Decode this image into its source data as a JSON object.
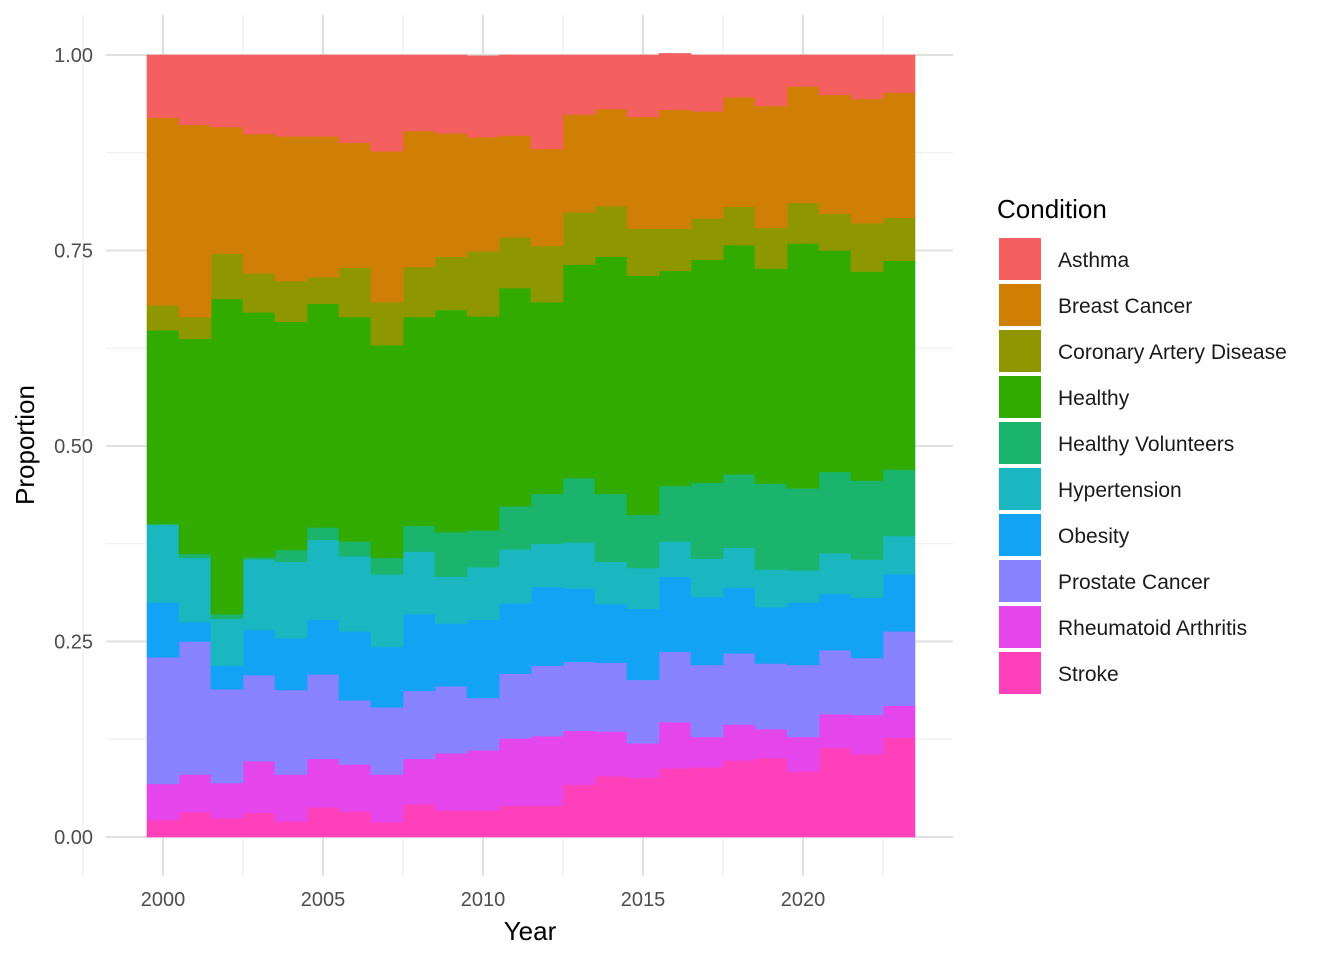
{
  "chart_data": {
    "type": "area",
    "stacked": "fill",
    "xlabel": "Year",
    "ylabel": "Proportion",
    "xlim": [
      1999.5,
      2023.5
    ],
    "ylim": [
      0,
      1
    ],
    "x_ticks": [
      2000,
      2005,
      2010,
      2015,
      2020
    ],
    "x_tick_labels": [
      "2000",
      "2005",
      "2010",
      "2015",
      "2020"
    ],
    "y_ticks": [
      0,
      0.25,
      0.5,
      0.75,
      1.0
    ],
    "y_tick_labels": [
      "0.00",
      "0.25",
      "0.50",
      "0.75",
      "1.00"
    ],
    "grid": true,
    "legend": {
      "title": "Condition",
      "position": "right"
    },
    "x": [
      2000,
      2001,
      2002,
      2003,
      2004,
      2005,
      2006,
      2007,
      2008,
      2009,
      2010,
      2011,
      2012,
      2013,
      2014,
      2015,
      2016,
      2017,
      2018,
      2019,
      2020,
      2021,
      2022,
      2023
    ],
    "series": [
      {
        "name": "Stroke",
        "color": "#FF40BB",
        "values": [
          0.022,
          0.032,
          0.024,
          0.031,
          0.02,
          0.038,
          0.033,
          0.019,
          0.042,
          0.034,
          0.034,
          0.04,
          0.04,
          0.067,
          0.078,
          0.076,
          0.088,
          0.089,
          0.098,
          0.101,
          0.084,
          0.114,
          0.106,
          0.127
        ]
      },
      {
        "name": "Rheumatoid Arthritis",
        "color": "#E546EC",
        "values": [
          0.046,
          0.048,
          0.045,
          0.066,
          0.06,
          0.062,
          0.06,
          0.061,
          0.058,
          0.073,
          0.077,
          0.086,
          0.089,
          0.069,
          0.057,
          0.044,
          0.059,
          0.039,
          0.046,
          0.037,
          0.044,
          0.043,
          0.05,
          0.041
        ]
      },
      {
        "name": "Prostate Cancer",
        "color": "#8882FF",
        "values": [
          0.162,
          0.17,
          0.12,
          0.11,
          0.108,
          0.108,
          0.082,
          0.086,
          0.087,
          0.086,
          0.067,
          0.083,
          0.09,
          0.088,
          0.088,
          0.081,
          0.09,
          0.092,
          0.091,
          0.084,
          0.092,
          0.082,
          0.073,
          0.095
        ]
      },
      {
        "name": "Obesity",
        "color": "#12A3F5",
        "values": [
          0.07,
          0.025,
          0.03,
          0.058,
          0.066,
          0.07,
          0.088,
          0.077,
          0.098,
          0.08,
          0.1,
          0.09,
          0.101,
          0.094,
          0.075,
          0.091,
          0.096,
          0.087,
          0.084,
          0.072,
          0.08,
          0.072,
          0.077,
          0.073
        ]
      },
      {
        "name": "Hypertension",
        "color": "#1AB7C0",
        "values": [
          0.1,
          0.082,
          0.06,
          0.09,
          0.098,
          0.102,
          0.096,
          0.093,
          0.08,
          0.06,
          0.067,
          0.069,
          0.055,
          0.059,
          0.054,
          0.052,
          0.045,
          0.049,
          0.051,
          0.048,
          0.041,
          0.052,
          0.049,
          0.049
        ]
      },
      {
        "name": "Healthy Volunteers",
        "color": "#1AB46C",
        "values": [
          0.0,
          0.005,
          0.006,
          0.003,
          0.015,
          0.016,
          0.019,
          0.021,
          0.033,
          0.057,
          0.047,
          0.055,
          0.064,
          0.082,
          0.087,
          0.068,
          0.071,
          0.097,
          0.094,
          0.11,
          0.105,
          0.104,
          0.101,
          0.085
        ]
      },
      {
        "name": "Healthy",
        "color": "#31AB00",
        "values": [
          0.248,
          0.275,
          0.403,
          0.313,
          0.292,
          0.286,
          0.287,
          0.272,
          0.267,
          0.284,
          0.274,
          0.279,
          0.245,
          0.273,
          0.303,
          0.306,
          0.275,
          0.285,
          0.293,
          0.275,
          0.313,
          0.283,
          0.267,
          0.267
        ]
      },
      {
        "name": "Coronary Artery Disease",
        "color": "#8F9700",
        "values": [
          0.032,
          0.028,
          0.058,
          0.05,
          0.052,
          0.034,
          0.063,
          0.055,
          0.064,
          0.068,
          0.083,
          0.065,
          0.072,
          0.067,
          0.065,
          0.06,
          0.054,
          0.053,
          0.049,
          0.052,
          0.052,
          0.047,
          0.062,
          0.055
        ]
      },
      {
        "name": "Breast Cancer",
        "color": "#D07F05",
        "values": [
          0.24,
          0.246,
          0.162,
          0.178,
          0.185,
          0.18,
          0.16,
          0.193,
          0.174,
          0.158,
          0.146,
          0.13,
          0.124,
          0.125,
          0.124,
          0.143,
          0.152,
          0.137,
          0.14,
          0.156,
          0.149,
          0.152,
          0.159,
          0.16
        ]
      },
      {
        "name": "Asthma",
        "color": "#F45F5F",
        "values": [
          0.08,
          0.089,
          0.092,
          0.101,
          0.104,
          0.104,
          0.112,
          0.123,
          0.097,
          0.1,
          0.104,
          0.103,
          0.12,
          0.076,
          0.069,
          0.079,
          0.072,
          0.072,
          0.054,
          0.065,
          0.04,
          0.051,
          0.056,
          0.048
        ]
      }
    ]
  }
}
